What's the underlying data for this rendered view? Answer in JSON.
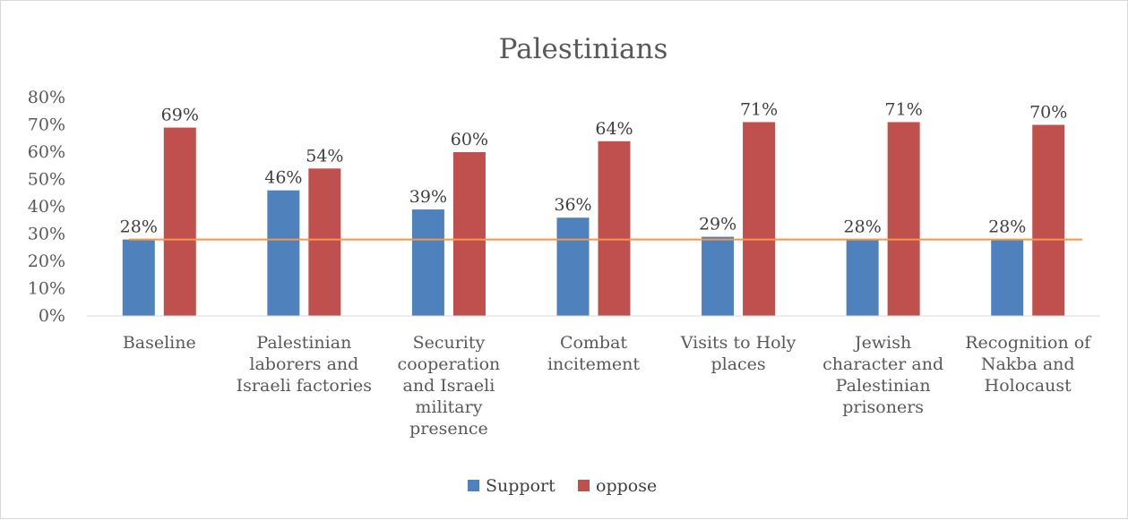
{
  "chart_data": {
    "type": "bar",
    "title": "Palestinians",
    "categories": [
      [
        "Baseline"
      ],
      [
        "Palestinian",
        "laborers and",
        "Israeli factories"
      ],
      [
        "Security",
        "cooperation",
        "and Israeli",
        "military",
        "presence"
      ],
      [
        "Combat",
        "incitement"
      ],
      [
        "Visits to Holy",
        "places"
      ],
      [
        "Jewish",
        "character and",
        "Palestinian",
        "prisoners"
      ],
      [
        "Recognition of",
        "Nakba and",
        "Holocaust"
      ]
    ],
    "series": [
      {
        "name": "Support",
        "color": "#4f81bd",
        "values": [
          28,
          46,
          39,
          36,
          29,
          28,
          28
        ],
        "labels": [
          "28%",
          "46%",
          "39%",
          "36%",
          "29%",
          "28%",
          "28%"
        ]
      },
      {
        "name": "oppose",
        "color": "#c0504d",
        "values": [
          69,
          54,
          60,
          64,
          71,
          71,
          70
        ],
        "labels": [
          "69%",
          "54%",
          "60%",
          "64%",
          "71%",
          "71%",
          "70%"
        ]
      }
    ],
    "reference_line": {
      "value": 28,
      "color": "#f79646"
    },
    "ylim": [
      0,
      80
    ],
    "yticks": [
      0,
      10,
      20,
      30,
      40,
      50,
      60,
      70,
      80
    ],
    "ytick_labels": [
      "0%",
      "10%",
      "20%",
      "30%",
      "40%",
      "50%",
      "60%",
      "70%",
      "80%"
    ],
    "grid": false,
    "legend": "bottom",
    "xlabel": "",
    "ylabel": ""
  }
}
